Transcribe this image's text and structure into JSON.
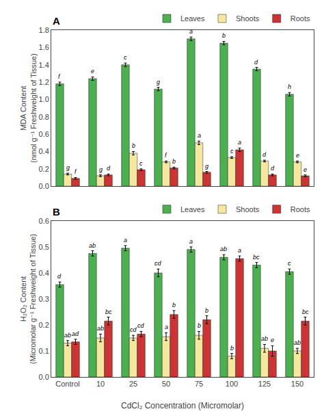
{
  "chart_data": [
    {
      "type": "bar",
      "title": "A",
      "y_label": "MDA Content\n(nmol g⁻¹ Freshweight of Tissue)",
      "categories": [
        "Control",
        "10",
        "25",
        "50",
        "75",
        "100",
        "125",
        "150"
      ],
      "series": [
        {
          "name": "Leaves",
          "color": "#4caf50",
          "values": [
            1.18,
            1.24,
            1.4,
            1.12,
            1.7,
            1.65,
            1.35,
            1.06
          ],
          "errors": [
            0.02,
            0.02,
            0.02,
            0.02,
            0.02,
            0.02,
            0.02,
            0.02
          ],
          "annotations": [
            "f",
            "e",
            "c",
            "g",
            "a",
            "b",
            "d",
            "h"
          ]
        },
        {
          "name": "Shoots",
          "color": "#f5e6a0",
          "values": [
            0.14,
            0.12,
            0.38,
            0.28,
            0.5,
            0.33,
            0.29,
            0.28
          ],
          "errors": [
            0.01,
            0.01,
            0.02,
            0.01,
            0.02,
            0.01,
            0.01,
            0.01
          ],
          "annotations": [
            "g",
            "g",
            "b",
            "f",
            "a",
            "c",
            "d",
            "e"
          ]
        },
        {
          "name": "Roots",
          "color": "#cc3333",
          "values": [
            0.09,
            0.13,
            0.19,
            0.21,
            0.16,
            0.42,
            0.13,
            0.12
          ],
          "errors": [
            0.01,
            0.01,
            0.01,
            0.01,
            0.01,
            0.02,
            0.01,
            0.01
          ],
          "annotations": [
            "f",
            "d",
            "c",
            "b",
            "g",
            "a",
            "d",
            "e"
          ]
        }
      ],
      "ylim": [
        0,
        1.8
      ],
      "yticks": [
        {
          "value": 0,
          "label": "0.0"
        },
        0.2,
        0.4,
        0.6,
        0.8,
        {
          "value": 1,
          "label": "1.0"
        },
        1.2,
        1.4,
        1.6,
        1.8
      ],
      "grid": false,
      "legend": "upper right",
      "tick_labels": "y"
    },
    {
      "type": "bar",
      "title": "B",
      "y_label": "H₂O₂ Content\n(Micromolar g⁻¹ Freshweight of Tissue)",
      "x_label": "CdCl₂ Concentration (Micromolar)",
      "categories": [
        "Control",
        "10",
        "25",
        "50",
        "75",
        "100",
        "125",
        "150"
      ],
      "series": [
        {
          "name": "Leaves",
          "color": "#4caf50",
          "values": [
            0.355,
            0.475,
            0.495,
            0.4,
            0.49,
            0.46,
            0.43,
            0.405
          ],
          "errors": [
            0.01,
            0.01,
            0.01,
            0.015,
            0.01,
            0.01,
            0.01,
            0.01
          ],
          "annotations": [
            "d",
            "ab",
            "a",
            "cd",
            "a",
            "ab",
            "bc",
            "c"
          ]
        },
        {
          "name": "Shoots",
          "color": "#f5e6a0",
          "values": [
            0.13,
            0.15,
            0.15,
            0.155,
            0.16,
            0.08,
            0.11,
            0.1
          ],
          "errors": [
            0.01,
            0.015,
            0.01,
            0.015,
            0.015,
            0.01,
            0.015,
            0.01
          ],
          "annotations": [
            "ab",
            "ab",
            "cd",
            "a",
            "b",
            "b",
            "ab",
            "ab"
          ]
        },
        {
          "name": "Roots",
          "color": "#cc3333",
          "values": [
            0.135,
            0.215,
            0.165,
            0.24,
            0.22,
            0.455,
            0.1,
            0.215
          ],
          "errors": [
            0.01,
            0.015,
            0.01,
            0.015,
            0.015,
            0.01,
            0.02,
            0.015
          ],
          "annotations": [
            "ad",
            "bc",
            "cd",
            "b",
            "b",
            "a",
            "e",
            "bc"
          ]
        }
      ],
      "ylim": [
        0.0,
        0.6
      ],
      "yticks": [
        {
          "value": 0,
          "label": "0.0"
        },
        0.1,
        0.2,
        0.3,
        0.4,
        0.5,
        0.6
      ],
      "grid": false,
      "legend": "upper right"
    }
  ]
}
